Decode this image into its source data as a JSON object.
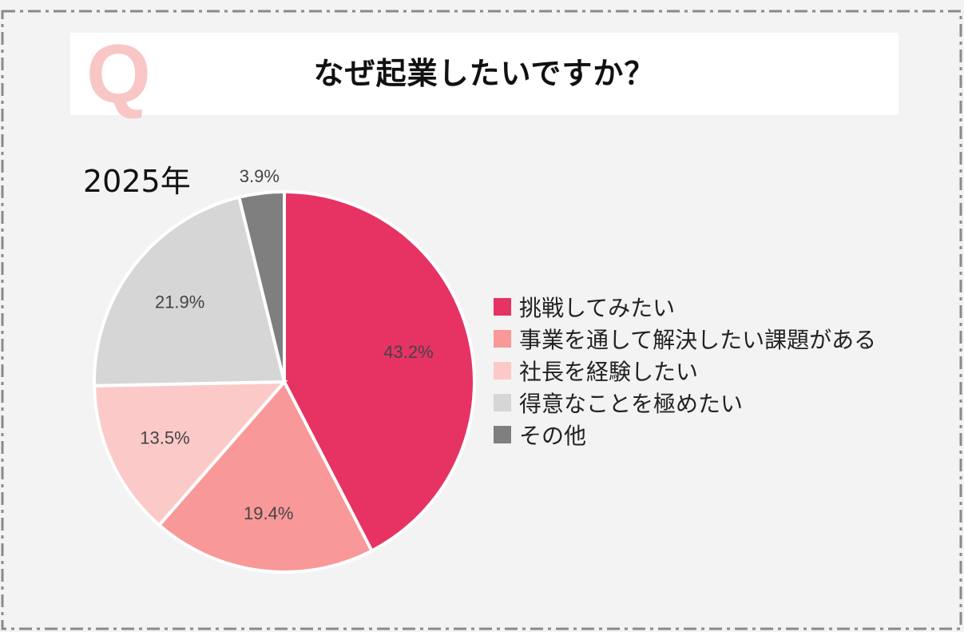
{
  "header": {
    "q_mark": "Q",
    "title": "なぜ起業したいですか？"
  },
  "chart_data": {
    "type": "pie",
    "title": "なぜ起業したいですか？",
    "subtitle": "2025年",
    "categories": [
      "挑戦してみたい",
      "事業を通して解決したい課題がある",
      "社長を経験したい",
      "得意なことを極めたい",
      "その他"
    ],
    "values": [
      43.2,
      19.4,
      13.5,
      21.9,
      3.9
    ],
    "labels": [
      "43.2%",
      "19.4%",
      "13.5%",
      "21.9%",
      "3.9%"
    ],
    "colors": [
      "#e63364",
      "#f99898",
      "#fcc9c9",
      "#d6d6d6",
      "#7f7f7f"
    ],
    "start_angle_deg": 0,
    "direction": "clockwise",
    "legend_position": "right"
  }
}
